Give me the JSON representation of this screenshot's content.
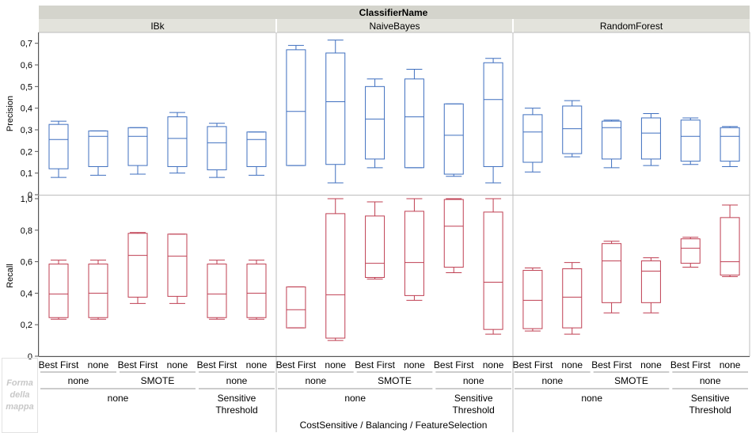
{
  "chart_data": {
    "type": "boxplot",
    "group_title": "ClassifierName",
    "x_axis_title": "CostSensitive / Balancing / FeatureSelection",
    "panels": [
      "IBk",
      "NaiveBayes",
      "RandomForest"
    ],
    "x_levels": {
      "feature_selection": [
        "Best First",
        "none",
        "Best First",
        "none",
        "Best First",
        "none"
      ],
      "balancing": [
        "none",
        "SMOTE",
        "none"
      ],
      "cost_sensitive": [
        "none",
        "Sensitive Threshold"
      ]
    },
    "rows": [
      {
        "label": "Precision",
        "ylim": [
          0,
          0.75
        ],
        "ticks": [
          "0",
          "0,1",
          "0,2",
          "0,3",
          "0,4",
          "0,5",
          "0,6",
          "0,7"
        ],
        "tick_values": [
          0,
          0.1,
          0.2,
          0.3,
          0.4,
          0.5,
          0.6,
          0.7
        ],
        "color": "#3f6fbf",
        "boxes": {
          "IBk": [
            [
              0.08,
              0.12,
              0.255,
              0.325,
              0.34
            ],
            [
              0.09,
              0.13,
              0.27,
              0.295,
              0.295
            ],
            [
              0.095,
              0.135,
              0.27,
              0.31,
              0.31
            ],
            [
              0.1,
              0.13,
              0.26,
              0.36,
              0.38
            ],
            [
              0.08,
              0.115,
              0.24,
              0.315,
              0.33
            ],
            [
              0.09,
              0.13,
              0.255,
              0.29,
              0.29
            ]
          ],
          "NaiveBayes": [
            [
              0.135,
              0.135,
              0.385,
              0.67,
              0.69
            ],
            [
              0.055,
              0.14,
              0.43,
              0.655,
              0.715
            ],
            [
              0.125,
              0.165,
              0.35,
              0.5,
              0.535
            ],
            [
              0.125,
              0.125,
              0.36,
              0.535,
              0.58
            ],
            [
              0.085,
              0.095,
              0.275,
              0.42,
              0.42
            ],
            [
              0.055,
              0.13,
              0.44,
              0.61,
              0.63
            ]
          ],
          "RandomForest": [
            [
              0.105,
              0.15,
              0.29,
              0.37,
              0.4
            ],
            [
              0.175,
              0.19,
              0.305,
              0.41,
              0.435
            ],
            [
              0.125,
              0.165,
              0.31,
              0.34,
              0.345
            ],
            [
              0.135,
              0.165,
              0.285,
              0.355,
              0.375
            ],
            [
              0.14,
              0.155,
              0.27,
              0.345,
              0.355
            ],
            [
              0.13,
              0.155,
              0.27,
              0.31,
              0.315
            ]
          ]
        }
      },
      {
        "label": "Recall",
        "ylim": [
          0,
          1.02
        ],
        "ticks": [
          "0",
          "0,2",
          "0,4",
          "0,6",
          "0,8",
          "1,0"
        ],
        "tick_values": [
          0,
          0.2,
          0.4,
          0.6,
          0.8,
          1.0
        ],
        "color": "#bf3f52",
        "boxes": {
          "IBk": [
            [
              0.235,
              0.245,
              0.395,
              0.585,
              0.61
            ],
            [
              0.235,
              0.245,
              0.4,
              0.585,
              0.61
            ],
            [
              0.335,
              0.375,
              0.64,
              0.78,
              0.785
            ],
            [
              0.335,
              0.38,
              0.635,
              0.775,
              0.775
            ],
            [
              0.235,
              0.245,
              0.395,
              0.585,
              0.61
            ],
            [
              0.235,
              0.245,
              0.4,
              0.585,
              0.61
            ]
          ],
          "NaiveBayes": [
            [
              0.18,
              0.18,
              0.295,
              0.44,
              0.44
            ],
            [
              0.1,
              0.115,
              0.39,
              0.905,
              1.0
            ],
            [
              0.49,
              0.5,
              0.59,
              0.89,
              0.98
            ],
            [
              0.355,
              0.385,
              0.595,
              0.92,
              1.0
            ],
            [
              0.53,
              0.565,
              0.825,
              0.995,
              1.0
            ],
            [
              0.14,
              0.17,
              0.47,
              0.915,
              1.0
            ]
          ],
          "RandomForest": [
            [
              0.16,
              0.175,
              0.355,
              0.545,
              0.56
            ],
            [
              0.14,
              0.18,
              0.375,
              0.555,
              0.595
            ],
            [
              0.275,
              0.34,
              0.605,
              0.715,
              0.73
            ],
            [
              0.275,
              0.34,
              0.54,
              0.605,
              0.625
            ],
            [
              0.565,
              0.59,
              0.685,
              0.745,
              0.755
            ],
            [
              0.505,
              0.515,
              0.6,
              0.88,
              0.96
            ]
          ]
        }
      }
    ],
    "legend_placeholder": [
      "Forma",
      "della",
      "mappa"
    ]
  }
}
